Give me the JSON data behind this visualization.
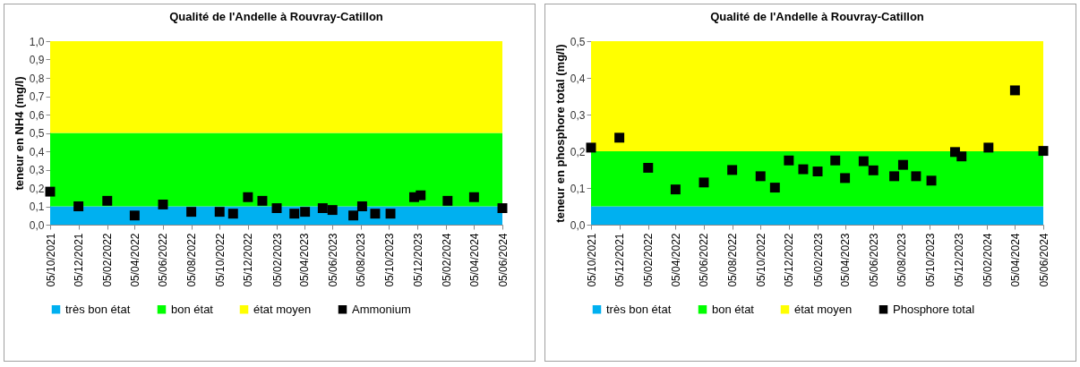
{
  "chart_data": [
    {
      "type": "scatter",
      "title": "Qualité de l'Andelle à Rouvray-Catillon",
      "ylabel": "teneur en NH4 (mg/l)",
      "xlim": [
        "2021-10-05",
        "2024-06-05"
      ],
      "ylim": [
        0,
        1
      ],
      "xticks": [
        {
          "value": "2021-10-05",
          "label": "05/10/2021"
        },
        {
          "value": "2021-12-05",
          "label": "05/12/2021"
        },
        {
          "value": "2022-02-05",
          "label": "05/02/2022"
        },
        {
          "value": "2022-04-05",
          "label": "05/04/2022"
        },
        {
          "value": "2022-06-05",
          "label": "05/06/2022"
        },
        {
          "value": "2022-08-05",
          "label": "05/08/2022"
        },
        {
          "value": "2022-10-05",
          "label": "05/10/2022"
        },
        {
          "value": "2022-12-05",
          "label": "05/12/2022"
        },
        {
          "value": "2023-02-05",
          "label": "05/02/2023"
        },
        {
          "value": "2023-04-05",
          "label": "05/04/2023"
        },
        {
          "value": "2023-06-05",
          "label": "05/06/2023"
        },
        {
          "value": "2023-08-05",
          "label": "05/08/2023"
        },
        {
          "value": "2023-10-05",
          "label": "05/10/2023"
        },
        {
          "value": "2023-12-05",
          "label": "05/12/2023"
        },
        {
          "value": "2024-02-05",
          "label": "05/02/2024"
        },
        {
          "value": "2024-04-05",
          "label": "05/04/2024"
        },
        {
          "value": "2024-06-05",
          "label": "05/06/2024"
        }
      ],
      "yticks": [
        {
          "value": 0,
          "label": "0,0"
        },
        {
          "value": 0.1,
          "label": "0,1"
        },
        {
          "value": 0.2,
          "label": "0,2"
        },
        {
          "value": 0.3,
          "label": "0,3"
        },
        {
          "value": 0.4,
          "label": "0,4"
        },
        {
          "value": 0.5,
          "label": "0,5"
        },
        {
          "value": 0.6,
          "label": "0,6"
        },
        {
          "value": 0.7,
          "label": "0,7"
        },
        {
          "value": 0.8,
          "label": "0,8"
        },
        {
          "value": 0.9,
          "label": "0,9"
        },
        {
          "value": 1,
          "label": "1,0"
        }
      ],
      "bands": [
        {
          "axis": "y",
          "from": 0,
          "to": 0.1,
          "label": "très bon état",
          "color": "#00b0f0"
        },
        {
          "axis": "y",
          "from": 0.1,
          "to": 0.5,
          "label": "bon état",
          "color": "#00ff00"
        },
        {
          "axis": "y",
          "from": 0.5,
          "to": 1,
          "label": "état moyen",
          "color": "#ffff00"
        }
      ],
      "marker": "square",
      "legend": "bottom",
      "grid": false,
      "series": [
        {
          "name": "Ammonium",
          "color": "#000000",
          "x": [
            "2021-10-05",
            "2021-12-05",
            "2022-02-05",
            "2022-04-05",
            "2022-06-05",
            "2022-08-05",
            "2022-10-05",
            "2022-11-03",
            "2022-12-05",
            "2023-01-05",
            "2023-02-05",
            "2023-03-15",
            "2023-04-07",
            "2023-05-15",
            "2023-06-05",
            "2023-07-20",
            "2023-08-08",
            "2023-09-05",
            "2023-10-08",
            "2023-11-28",
            "2023-12-12",
            "2024-02-08",
            "2024-04-05",
            "2024-06-05"
          ],
          "values": [
            0.18,
            0.1,
            0.13,
            0.05,
            0.11,
            0.07,
            0.07,
            0.06,
            0.15,
            0.13,
            0.09,
            0.06,
            0.07,
            0.09,
            0.08,
            0.05,
            0.1,
            0.06,
            0.06,
            0.15,
            0.16,
            0.13,
            0.15,
            0.09
          ]
        }
      ]
    },
    {
      "type": "scatter",
      "title": "Qualité de l'Andelle à Rouvray-Catillon",
      "ylabel": "teneur en  phosphore total (mg/l)",
      "xlim": [
        "2021-10-05",
        "2024-06-05"
      ],
      "ylim": [
        0,
        0.5
      ],
      "xticks": [
        {
          "value": "2021-10-05",
          "label": "05/10/2021"
        },
        {
          "value": "2021-12-05",
          "label": "05/12/2021"
        },
        {
          "value": "2022-02-05",
          "label": "05/02/2022"
        },
        {
          "value": "2022-04-05",
          "label": "05/04/2022"
        },
        {
          "value": "2022-06-05",
          "label": "05/06/2022"
        },
        {
          "value": "2022-08-05",
          "label": "05/08/2022"
        },
        {
          "value": "2022-10-05",
          "label": "05/10/2022"
        },
        {
          "value": "2022-12-05",
          "label": "05/12/2022"
        },
        {
          "value": "2023-02-05",
          "label": "05/02/2023"
        },
        {
          "value": "2023-04-05",
          "label": "05/04/2023"
        },
        {
          "value": "2023-06-05",
          "label": "05/06/2023"
        },
        {
          "value": "2023-08-05",
          "label": "05/08/2023"
        },
        {
          "value": "2023-10-05",
          "label": "05/10/2023"
        },
        {
          "value": "2023-12-05",
          "label": "05/12/2023"
        },
        {
          "value": "2024-02-05",
          "label": "05/02/2024"
        },
        {
          "value": "2024-04-05",
          "label": "05/04/2024"
        },
        {
          "value": "2024-06-05",
          "label": "05/06/2024"
        }
      ],
      "yticks": [
        {
          "value": 0,
          "label": "0,0"
        },
        {
          "value": 0.1,
          "label": "0,1"
        },
        {
          "value": 0.2,
          "label": "0,2"
        },
        {
          "value": 0.3,
          "label": "0,3"
        },
        {
          "value": 0.4,
          "label": "0,4"
        },
        {
          "value": 0.5,
          "label": "0,5"
        }
      ],
      "bands": [
        {
          "axis": "y",
          "from": 0,
          "to": 0.05,
          "label": "très bon état",
          "color": "#00b0f0"
        },
        {
          "axis": "y",
          "from": 0.05,
          "to": 0.2,
          "label": "bon état",
          "color": "#00ff00"
        },
        {
          "axis": "y",
          "from": 0.2,
          "to": 0.5,
          "label": "état moyen",
          "color": "#ffff00"
        }
      ],
      "marker": "square",
      "legend": "bottom",
      "grid": false,
      "series": [
        {
          "name": "Phosphore total",
          "color": "#000000",
          "x": [
            "2021-10-05",
            "2021-12-05",
            "2022-02-05",
            "2022-04-05",
            "2022-06-05",
            "2022-08-05",
            "2022-10-05",
            "2022-11-05",
            "2022-12-05",
            "2023-01-05",
            "2023-02-05",
            "2023-03-15",
            "2023-04-05",
            "2023-05-15",
            "2023-06-05",
            "2023-07-20",
            "2023-08-08",
            "2023-09-05",
            "2023-10-08",
            "2023-11-28",
            "2023-12-12",
            "2024-02-08",
            "2024-04-05",
            "2024-06-05"
          ],
          "values": [
            0.21,
            0.237,
            0.155,
            0.096,
            0.115,
            0.149,
            0.132,
            0.101,
            0.175,
            0.151,
            0.145,
            0.175,
            0.127,
            0.173,
            0.148,
            0.132,
            0.163,
            0.132,
            0.12,
            0.198,
            0.186,
            0.21,
            0.366,
            0.201
          ]
        }
      ]
    }
  ]
}
